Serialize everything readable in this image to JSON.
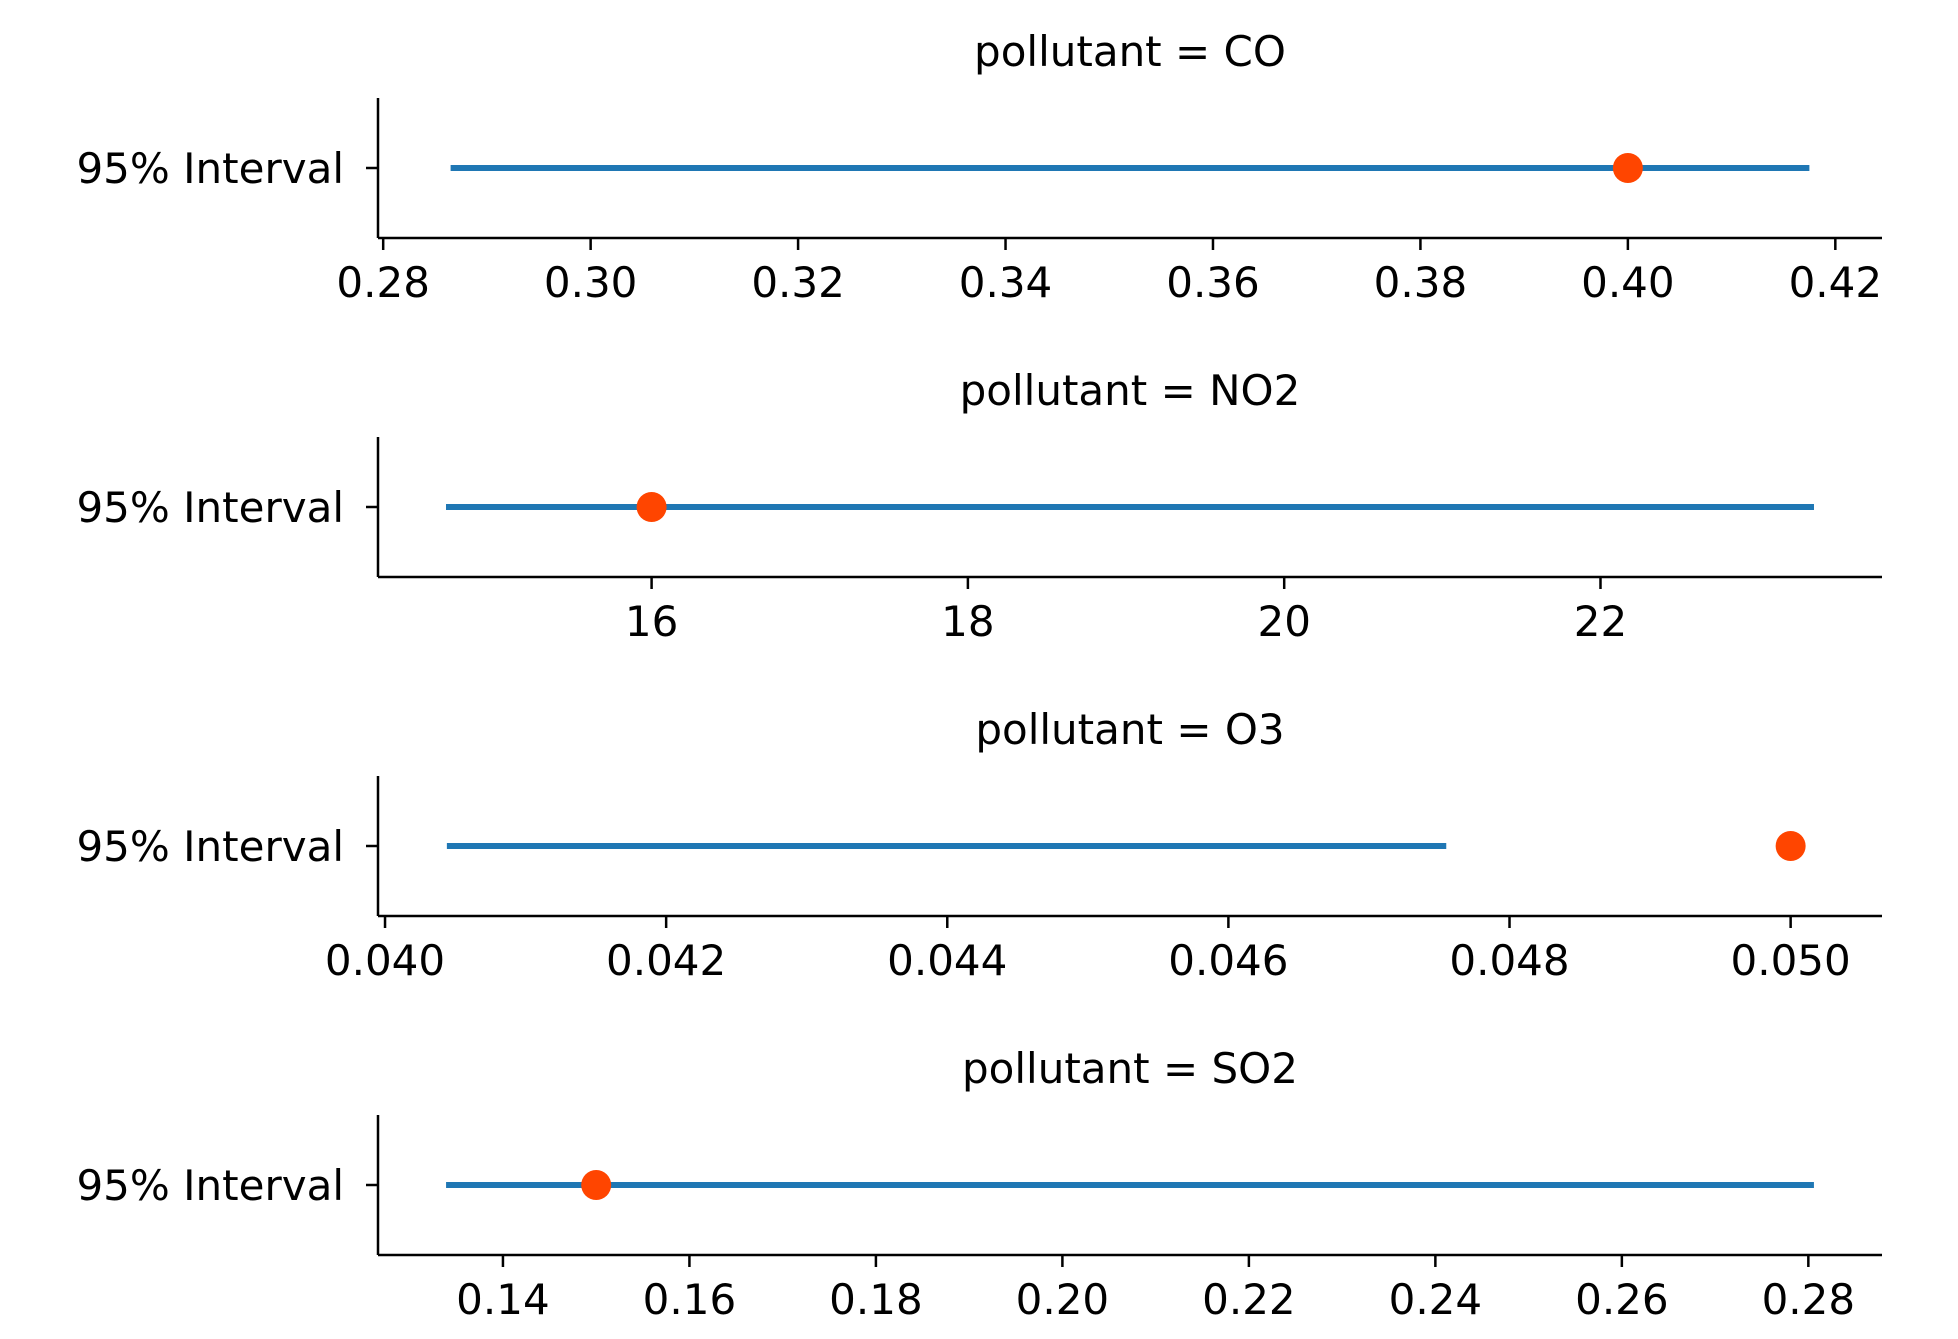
{
  "chart_data": [
    {
      "type": "errorbar",
      "title": "pollutant = CO",
      "ylabel_category": "95% Interval",
      "interval": [
        0.2865,
        0.4175
      ],
      "point": 0.4,
      "xlim": [
        0.2795,
        0.4245
      ],
      "xticks": [
        0.28,
        0.3,
        0.32,
        0.34,
        0.36,
        0.38,
        0.4,
        0.42
      ],
      "xtick_labels": [
        "0.28",
        "0.30",
        "0.32",
        "0.34",
        "0.36",
        "0.38",
        "0.40",
        "0.42"
      ]
    },
    {
      "type": "errorbar",
      "title": "pollutant = NO2",
      "ylabel_category": "95% Interval",
      "interval": [
        14.7,
        23.35
      ],
      "point": 16.0,
      "xlim": [
        14.27,
        23.78
      ],
      "xticks": [
        16,
        18,
        20,
        22
      ],
      "xtick_labels": [
        "16",
        "18",
        "20",
        "22"
      ]
    },
    {
      "type": "errorbar",
      "title": "pollutant = O3",
      "ylabel_category": "95% Interval",
      "interval": [
        0.04044,
        0.04755
      ],
      "point": 0.05,
      "xlim": [
        0.03995,
        0.05065
      ],
      "xticks": [
        0.04,
        0.042,
        0.044,
        0.046,
        0.048,
        0.05
      ],
      "xtick_labels": [
        "0.040",
        "0.042",
        "0.044",
        "0.046",
        "0.048",
        "0.050"
      ]
    },
    {
      "type": "errorbar",
      "title": "pollutant = SO2",
      "ylabel_category": "95% Interval",
      "interval": [
        0.1339,
        0.2806
      ],
      "point": 0.15,
      "xlim": [
        0.1266,
        0.2879
      ],
      "xticks": [
        0.14,
        0.16,
        0.18,
        0.2,
        0.22,
        0.24,
        0.26,
        0.28
      ],
      "xtick_labels": [
        "0.14",
        "0.16",
        "0.18",
        "0.20",
        "0.22",
        "0.24",
        "0.26",
        "0.28"
      ]
    }
  ],
  "colors": {
    "interval_line": "#1f77b4",
    "point": "#ff4500",
    "axis": "#000000"
  }
}
